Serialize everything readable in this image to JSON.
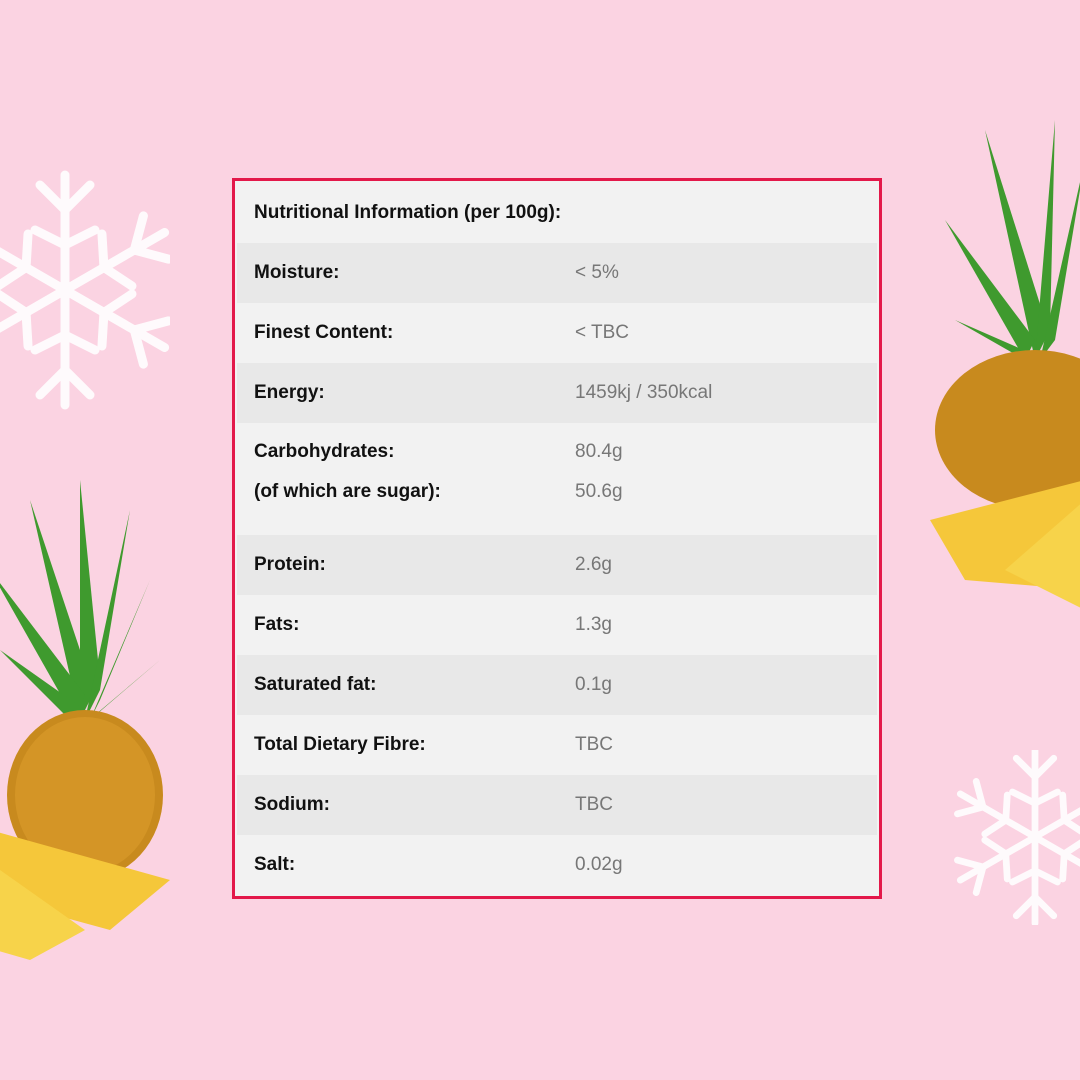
{
  "title": "Nutritional Information (per 100g):",
  "rows": [
    {
      "label": "Moisture:",
      "value": "< 5%"
    },
    {
      "label": "Finest Content:",
      "value": "< TBC"
    },
    {
      "label": "Energy:",
      "value": "1459kj / 350kcal"
    },
    {
      "label": "Carbohydrates:",
      "value": "80.4g",
      "sub_label": "(of which are sugar):",
      "sub_value": "50.6g"
    },
    {
      "label": "Protein:",
      "value": "2.6g"
    },
    {
      "label": "Fats:",
      "value": "1.3g"
    },
    {
      "label": "Saturated fat:",
      "value": "0.1g"
    },
    {
      "label": "Total Dietary Fibre:",
      "value": "TBC"
    },
    {
      "label": "Sodium:",
      "value": "TBC"
    },
    {
      "label": "Salt:",
      "value": "0.02g"
    }
  ],
  "colors": {
    "background": "#fbd3e2",
    "border": "#e3184a",
    "row_light": "#f2f2f2",
    "row_dark": "#e8e8e8"
  },
  "icons": [
    "snowflake-icon",
    "pineapple-image"
  ]
}
